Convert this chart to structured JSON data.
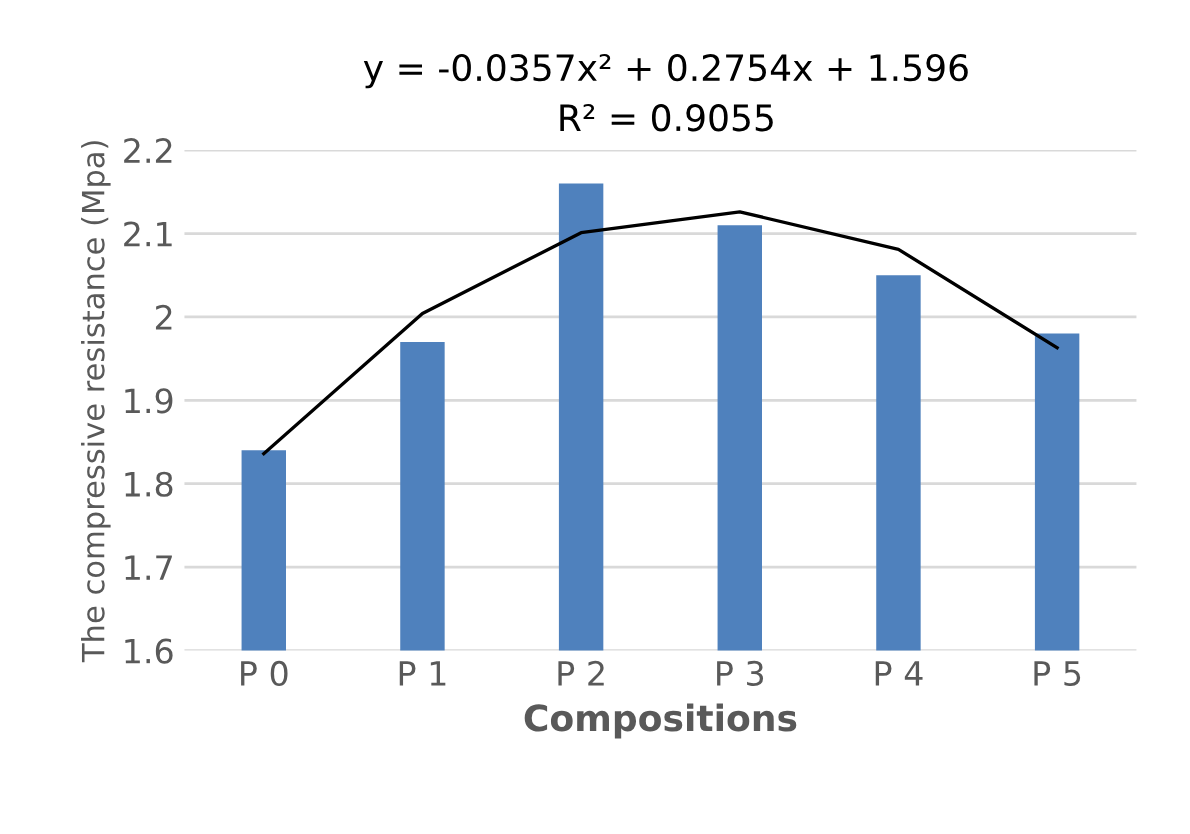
{
  "chart_data": {
    "type": "bar",
    "xlabel": "Compositions",
    "ylabel": "The compressive resistance (Mpa)",
    "categories": [
      "P 0",
      "P 1",
      "P 2",
      "P 3",
      "P 4",
      "P 5"
    ],
    "series": [
      {
        "color": "#4f81bd",
        "values": [
          1.84,
          1.97,
          2.16,
          2.11,
          2.05,
          1.98
        ]
      },
      {
        "type": "line",
        "color": "#000000",
        "values": [
          1.836,
          2.004,
          2.101,
          2.126,
          2.081,
          1.963
        ]
      }
    ],
    "ylim": [
      1.6,
      2.2
    ],
    "yticks": [
      1.6,
      1.7,
      1.8,
      1.9,
      2,
      2.1,
      2.2
    ],
    "grid": "y",
    "annotations": [
      "y = -0.0357x² + 0.2754x + 1.596",
      "R² = 0.9055"
    ]
  }
}
